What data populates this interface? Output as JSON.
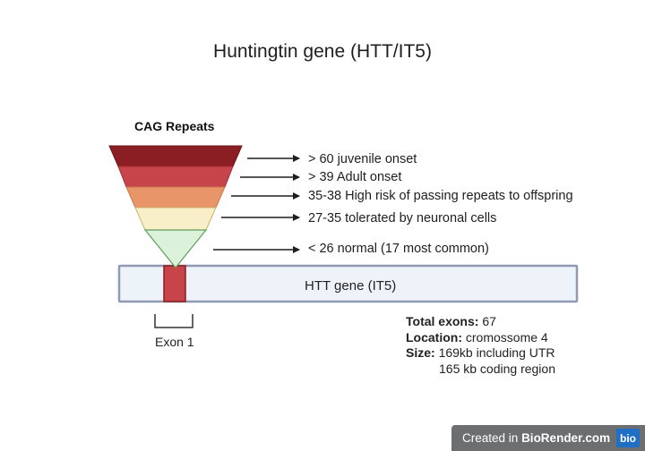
{
  "title": "Huntingtin gene (HTT/IT5)",
  "funnel": {
    "title": "CAG Repeats",
    "levels": [
      {
        "label": "> 60 juvenile onset",
        "color": "#8b1e22"
      },
      {
        "label": "> 39 Adult onset",
        "color": "#c8444b"
      },
      {
        "label": "35-38 High risk of passing repeats to offspring",
        "color": "#e8956a"
      },
      {
        "label": "27-35 tolerated by neuronal cells",
        "color": "#f8efc9"
      },
      {
        "label": "< 26 normal (17 most common)",
        "color": "#dcf1da"
      }
    ]
  },
  "gene": {
    "label": "HTT gene (IT5)",
    "fill": "#eef3fa",
    "stroke": "#8e9bb3"
  },
  "exon": {
    "label": "Exon 1",
    "color": "#c8444b"
  },
  "info": {
    "total_exons_label": "Total exons:",
    "total_exons_value": "67",
    "location_label": "Location:",
    "location_value": "cromossome 4",
    "size_label": "Size:",
    "size_value_1": "169kb including UTR",
    "size_value_2": "165 kb coding region"
  },
  "credit": {
    "prefix": "Created in",
    "brand": "BioRender.com",
    "logo": "bio"
  }
}
